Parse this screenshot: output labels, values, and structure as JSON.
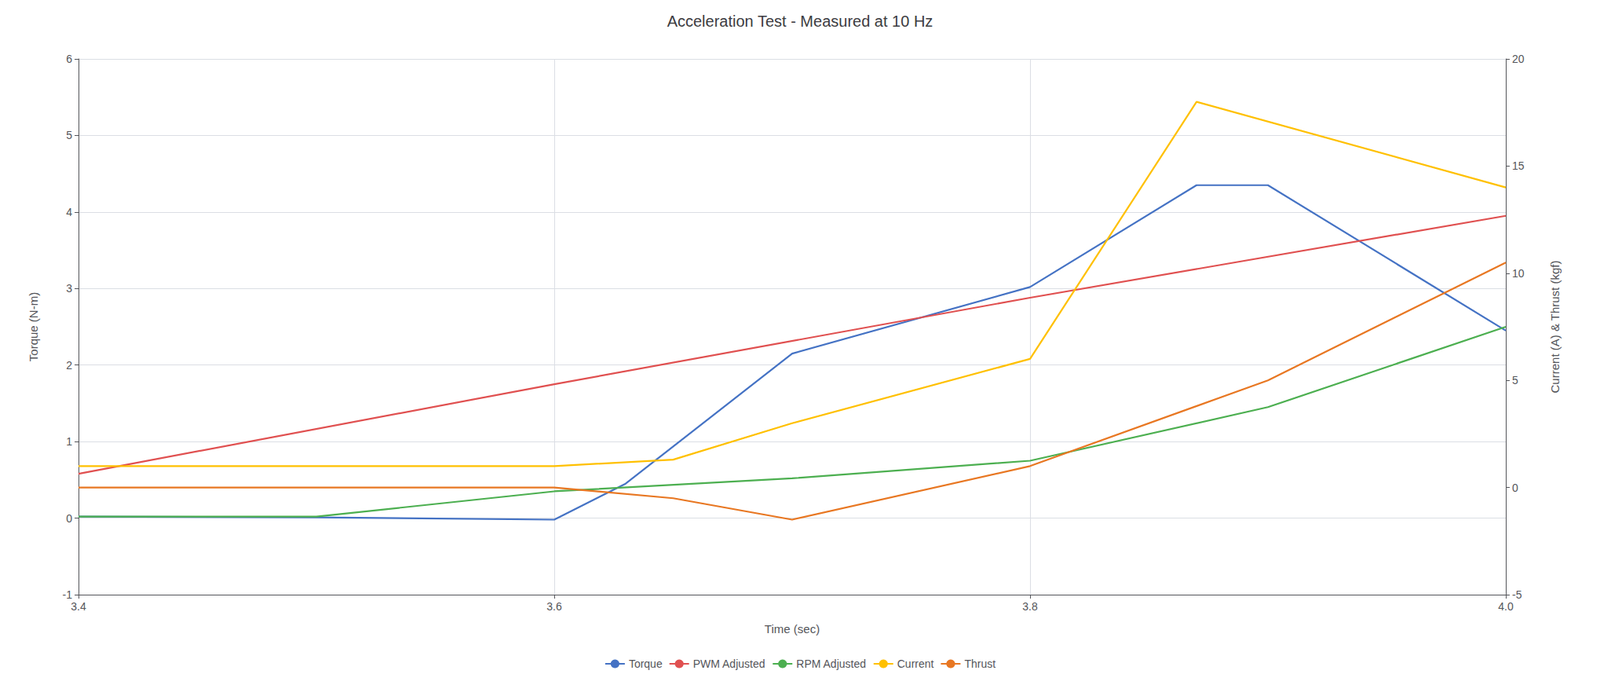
{
  "chart_data": {
    "type": "line",
    "title": "Acceleration Test - Measured at 10 Hz",
    "xlabel": "Time (sec)",
    "ylabel": "Torque (N-m)",
    "y2label": "Current (A) & Thrust (kgf)",
    "xlim": [
      3.4,
      4.0
    ],
    "xticks": [
      3.4,
      3.6,
      3.8,
      {
        "value": 4.0,
        "label": "4.0"
      }
    ],
    "ylim": [
      -1.0,
      6.0
    ],
    "yticks": [
      -1,
      0,
      1,
      2,
      3,
      4,
      5,
      6
    ],
    "y2lim": [
      -5.0,
      20.0
    ],
    "y2ticks": [
      -5,
      0,
      5,
      10,
      15,
      20
    ],
    "grid": true,
    "legend": "bottom",
    "series": [
      {
        "name": "Torque",
        "color": "#4472C4",
        "x": [
          3.4,
          3.5,
          3.6,
          3.63,
          3.7,
          3.8,
          3.87,
          3.9,
          4.0
        ],
        "values": [
          0.02,
          0.01,
          -0.02,
          0.45,
          2.15,
          3.02,
          4.35,
          4.35,
          2.45
        ]
      },
      {
        "name": "PWM Adjusted",
        "color": "#E05050",
        "x": [
          3.4,
          3.6,
          3.8,
          4.0
        ],
        "values": [
          0.58,
          1.75,
          2.88,
          3.95
        ]
      },
      {
        "name": "RPM Adjusted",
        "color": "#4CAF50",
        "x": [
          3.4,
          3.5,
          3.6,
          3.7,
          3.8,
          3.9,
          4.0
        ],
        "values": [
          0.02,
          0.02,
          0.35,
          0.52,
          0.75,
          1.45,
          2.5
        ]
      },
      {
        "name": "Current",
        "color": "#FFC000",
        "axis": "y2",
        "x": [
          3.4,
          3.6,
          3.65,
          3.7,
          3.8,
          3.87,
          4.0
        ],
        "values": [
          1.0,
          1.0,
          1.3,
          3.0,
          6.0,
          18.0,
          14.0
        ]
      },
      {
        "name": "Thrust",
        "color": "#E87722",
        "axis": "y2",
        "x": [
          3.4,
          3.6,
          3.65,
          3.7,
          3.8,
          3.9,
          4.0
        ],
        "values": [
          0.0,
          0.0,
          -0.5,
          -1.5,
          1.0,
          5.0,
          10.5
        ]
      }
    ]
  }
}
